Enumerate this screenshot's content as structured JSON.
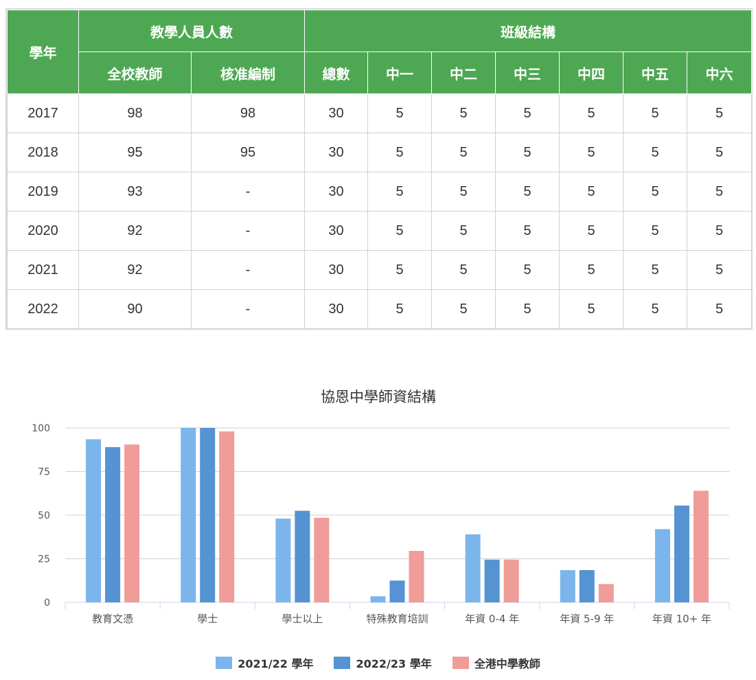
{
  "table": {
    "header": {
      "year": "學年",
      "group_staff": "教學人員人數",
      "group_class": "班級結構",
      "staff_cols": [
        "全校教師",
        "核准編制"
      ],
      "class_cols": [
        "總數",
        "中一",
        "中二",
        "中三",
        "中四",
        "中五",
        "中六"
      ]
    },
    "rows": [
      [
        "2017",
        "98",
        "98",
        "30",
        "5",
        "5",
        "5",
        "5",
        "5",
        "5"
      ],
      [
        "2018",
        "95",
        "95",
        "30",
        "5",
        "5",
        "5",
        "5",
        "5",
        "5"
      ],
      [
        "2019",
        "93",
        "-",
        "30",
        "5",
        "5",
        "5",
        "5",
        "5",
        "5"
      ],
      [
        "2020",
        "92",
        "-",
        "30",
        "5",
        "5",
        "5",
        "5",
        "5",
        "5"
      ],
      [
        "2021",
        "92",
        "-",
        "30",
        "5",
        "5",
        "5",
        "5",
        "5",
        "5"
      ],
      [
        "2022",
        "90",
        "-",
        "30",
        "5",
        "5",
        "5",
        "5",
        "5",
        "5"
      ]
    ]
  },
  "chart_data": {
    "type": "bar",
    "title": "協恩中學師資結構",
    "categories": [
      "教育文憑",
      "學士",
      "學士以上",
      "特殊教育培訓",
      "年資 0-4 年",
      "年資 5-9 年",
      "年資 10+ 年"
    ],
    "series": [
      {
        "name": "2021/22 學年",
        "color": "#7cb5ec",
        "values": [
          93.5,
          100,
          48,
          3.5,
          39,
          18.5,
          42
        ]
      },
      {
        "name": "2022/23 學年",
        "color": "#5593d3",
        "values": [
          89,
          100,
          52.5,
          12.5,
          24.5,
          18.5,
          55.5
        ]
      },
      {
        "name": "全港中學教師",
        "color": "#f09c98",
        "values": [
          90.5,
          98,
          48.5,
          29.5,
          24.5,
          10.5,
          64
        ]
      }
    ],
    "yticks": [
      0,
      25,
      50,
      75,
      100
    ],
    "ylim": [
      0,
      100
    ],
    "grid": true,
    "legend": "bottom-center"
  }
}
